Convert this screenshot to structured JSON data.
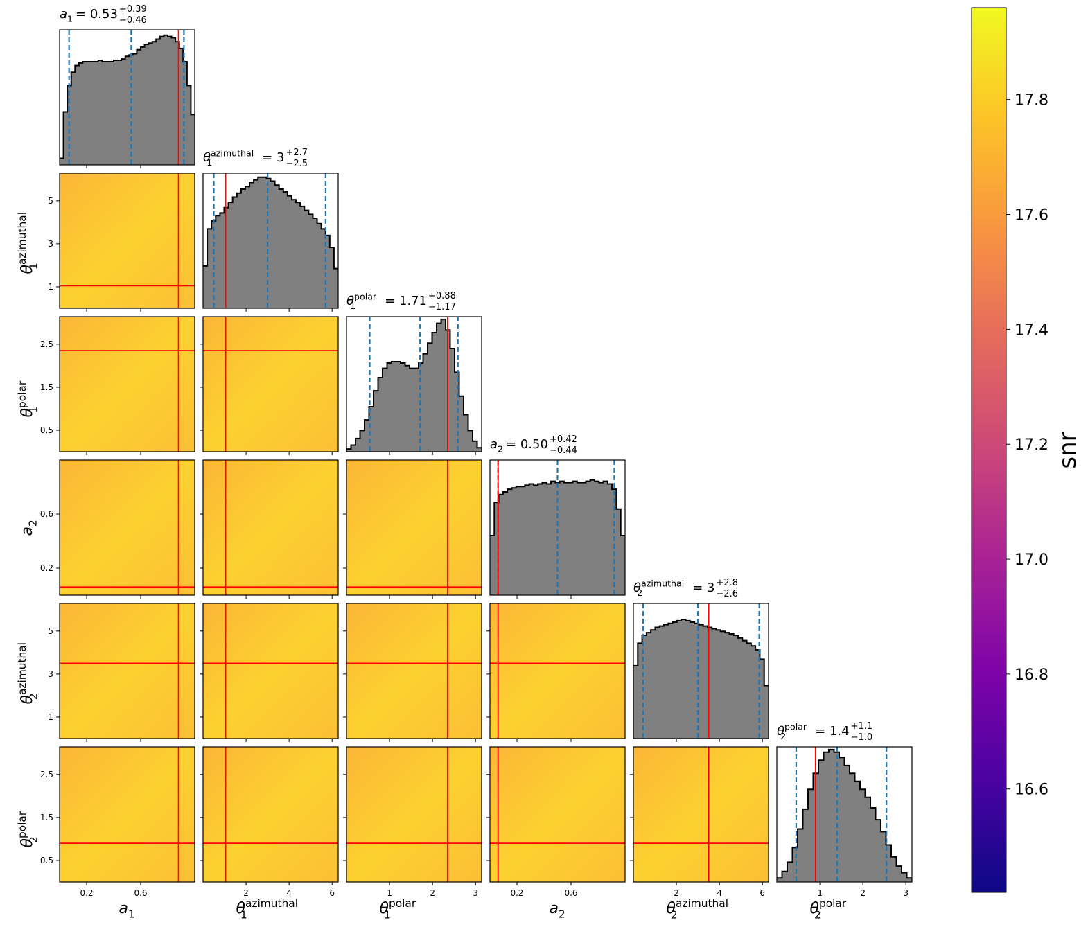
{
  "chart_data": {
    "type": "corner",
    "parameters": [
      {
        "symbol": "a",
        "sub": "1",
        "sup": "",
        "range": [
          0,
          1
        ],
        "ticks": [
          0.2,
          0.6
        ],
        "tick_labels": [
          "0.2",
          "0.6"
        ],
        "median": "0.53",
        "plus": "+0.39",
        "minus": "−0.46",
        "quantiles": [
          0.07,
          0.53,
          0.92
        ],
        "truth": 0.88,
        "hist": [
          0.05,
          0.4,
          0.6,
          0.7,
          0.75,
          0.77,
          0.78,
          0.78,
          0.78,
          0.78,
          0.79,
          0.78,
          0.78,
          0.78,
          0.79,
          0.79,
          0.8,
          0.82,
          0.83,
          0.84,
          0.87,
          0.89,
          0.91,
          0.92,
          0.93,
          0.95,
          0.97,
          0.98,
          0.97,
          0.96,
          0.93,
          0.88,
          0.78,
          0.6,
          0.38
        ]
      },
      {
        "symbol": "θ",
        "sub": "1",
        "sup": "azimuthal",
        "range": [
          0,
          6.283
        ],
        "ticks": [
          2,
          4,
          6
        ],
        "tick_labels": [
          "2",
          "4",
          "6"
        ],
        "ytick_labels": [
          "1",
          "3",
          "5"
        ],
        "yticks": [
          1,
          3,
          5
        ],
        "median": "3",
        "plus": "+2.7",
        "minus": "−2.5",
        "quantiles": [
          0.5,
          3.0,
          5.7
        ],
        "truth": 1.05,
        "hist": [
          0.32,
          0.6,
          0.66,
          0.7,
          0.72,
          0.76,
          0.8,
          0.84,
          0.87,
          0.9,
          0.92,
          0.95,
          0.97,
          0.99,
          0.99,
          0.98,
          0.96,
          0.93,
          0.9,
          0.88,
          0.85,
          0.82,
          0.8,
          0.77,
          0.74,
          0.71,
          0.68,
          0.64,
          0.6,
          0.55,
          0.46,
          0.3
        ]
      },
      {
        "symbol": "θ",
        "sub": "1",
        "sup": "polar",
        "range": [
          0,
          3.1416
        ],
        "ticks": [
          1,
          2,
          3
        ],
        "tick_labels": [
          "1",
          "2",
          "3"
        ],
        "ytick_labels": [
          "0.5",
          "1.5",
          "2.5"
        ],
        "yticks": [
          0.5,
          1.5,
          2.5
        ],
        "median": "1.71",
        "plus": "+0.88",
        "minus": "−1.17",
        "quantiles": [
          0.54,
          1.71,
          2.59
        ],
        "truth": 2.35,
        "hist": [
          0.02,
          0.05,
          0.1,
          0.16,
          0.24,
          0.34,
          0.46,
          0.56,
          0.63,
          0.67,
          0.68,
          0.68,
          0.67,
          0.65,
          0.63,
          0.63,
          0.67,
          0.74,
          0.82,
          0.9,
          0.97,
          1.0,
          0.92,
          0.78,
          0.6,
          0.42,
          0.28,
          0.16,
          0.08,
          0.03
        ]
      },
      {
        "symbol": "a",
        "sub": "2",
        "sup": "",
        "range": [
          0,
          1
        ],
        "ticks": [
          0.2,
          0.6
        ],
        "tick_labels": [
          "0.2",
          "0.6"
        ],
        "ytick_labels": [
          "0.2",
          "0.6"
        ],
        "yticks": [
          0.2,
          0.6
        ],
        "median": "0.50",
        "plus": "+0.42",
        "minus": "−0.44",
        "quantiles": [
          0.06,
          0.5,
          0.92
        ],
        "truth": 0.06,
        "hist": [
          0.45,
          0.7,
          0.76,
          0.78,
          0.8,
          0.81,
          0.82,
          0.82,
          0.83,
          0.84,
          0.83,
          0.84,
          0.85,
          0.84,
          0.86,
          0.85,
          0.86,
          0.85,
          0.85,
          0.86,
          0.85,
          0.85,
          0.86,
          0.87,
          0.86,
          0.85,
          0.86,
          0.84,
          0.8,
          0.65,
          0.45
        ]
      },
      {
        "symbol": "θ",
        "sub": "2",
        "sup": "azimuthal",
        "range": [
          0,
          6.283
        ],
        "ticks": [
          2,
          4,
          6
        ],
        "tick_labels": [
          "2",
          "4",
          "6"
        ],
        "ytick_labels": [
          "1",
          "3",
          "5"
        ],
        "yticks": [
          1,
          3,
          5
        ],
        "median": "3",
        "plus": "+2.8",
        "minus": "−2.6",
        "quantiles": [
          0.45,
          3.0,
          5.85
        ],
        "truth": 3.5,
        "hist": [
          0.55,
          0.72,
          0.78,
          0.8,
          0.82,
          0.84,
          0.85,
          0.86,
          0.87,
          0.88,
          0.89,
          0.9,
          0.89,
          0.88,
          0.87,
          0.86,
          0.85,
          0.84,
          0.83,
          0.82,
          0.81,
          0.8,
          0.79,
          0.78,
          0.76,
          0.74,
          0.72,
          0.7,
          0.67,
          0.6,
          0.4
        ]
      },
      {
        "symbol": "θ",
        "sub": "2",
        "sup": "polar",
        "range": [
          0,
          3.1416
        ],
        "ticks": [
          1,
          2,
          3
        ],
        "tick_labels": [
          "1",
          "2",
          "3"
        ],
        "ytick_labels": [
          "0.5",
          "1.5",
          "2.5"
        ],
        "yticks": [
          0.5,
          1.5,
          2.5
        ],
        "median": "1.4",
        "plus": "+1.1",
        "minus": "−1.0",
        "quantiles": [
          0.45,
          1.4,
          2.55
        ],
        "truth": 0.9,
        "hist": [
          0.03,
          0.08,
          0.15,
          0.26,
          0.4,
          0.55,
          0.7,
          0.82,
          0.92,
          0.98,
          1.0,
          0.98,
          0.94,
          0.88,
          0.82,
          0.76,
          0.7,
          0.64,
          0.56,
          0.47,
          0.38,
          0.28,
          0.19,
          0.12,
          0.07,
          0.03
        ]
      }
    ],
    "truth_values": [
      0.88,
      1.05,
      2.35,
      0.06,
      3.5,
      0.9
    ],
    "colorbar": {
      "label": "snr",
      "colormap": "plasma",
      "range": [
        16.42,
        17.96
      ],
      "ticks": [
        16.6,
        16.8,
        17.0,
        17.2,
        17.4,
        17.6,
        17.8
      ],
      "tick_labels": [
        "16.6",
        "16.8",
        "17.0",
        "17.2",
        "17.4",
        "17.6",
        "17.8"
      ]
    },
    "colors": {
      "hist_fill": "#808080",
      "hist_edge": "#000000",
      "quantile_line": "#1f77b4",
      "truth_line": "#ff0000"
    }
  }
}
